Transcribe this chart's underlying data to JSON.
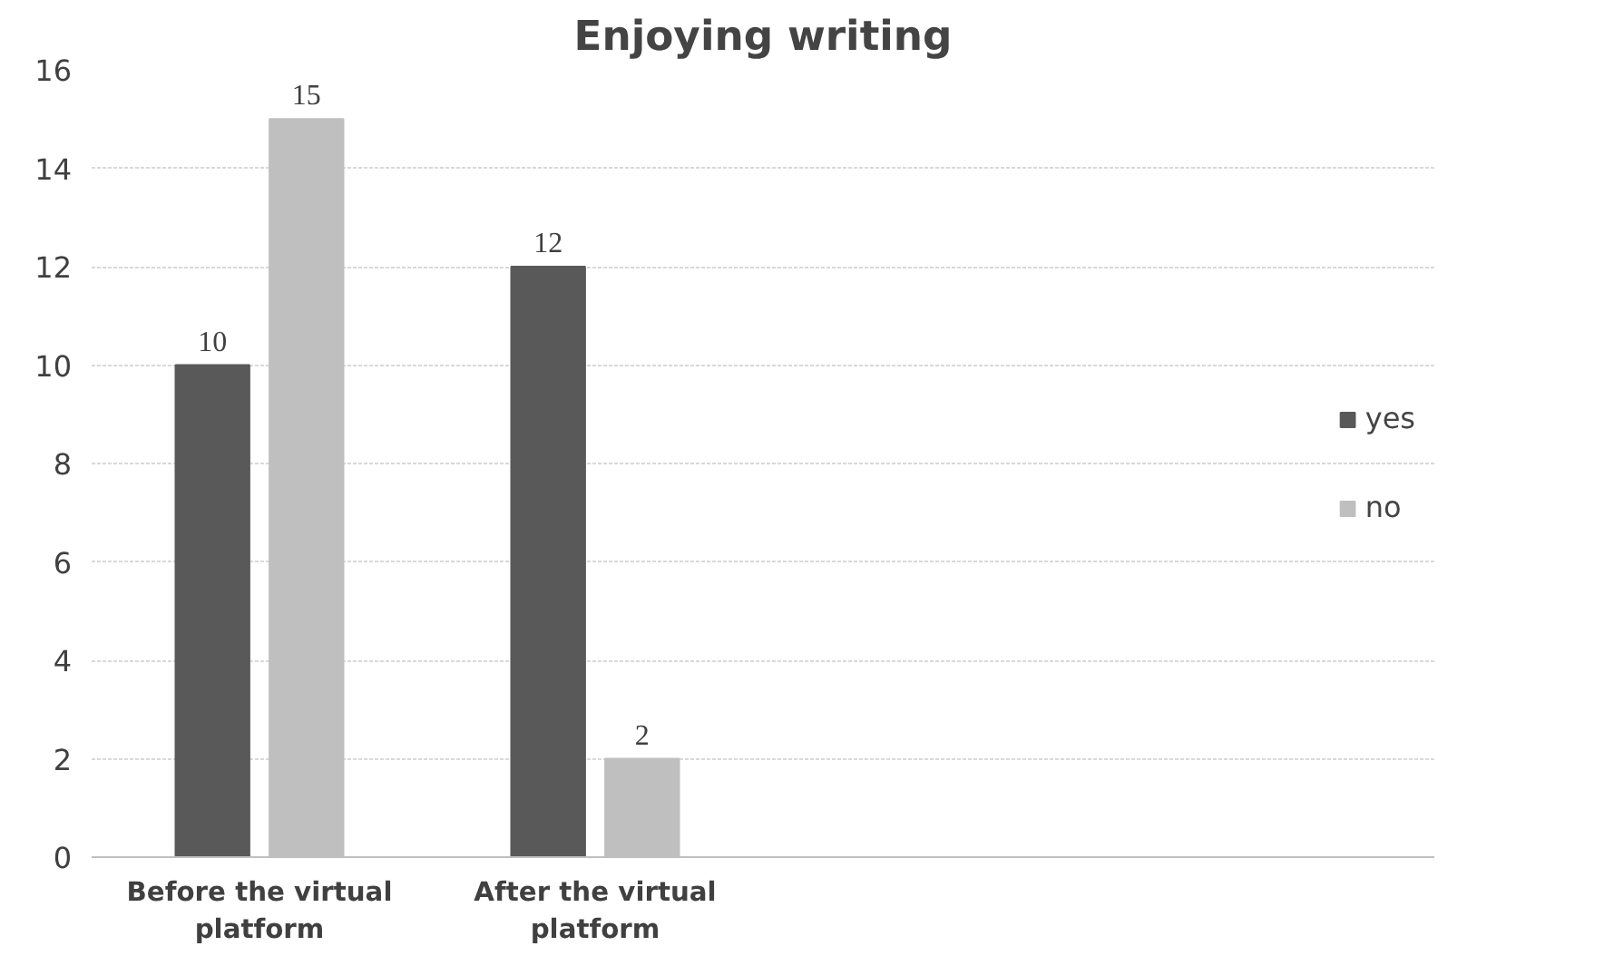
{
  "chart_data": {
    "type": "bar",
    "title": "Enjoying writing",
    "categories": [
      "Before the virtual platform",
      "After the virtual platform",
      null,
      null
    ],
    "series": [
      {
        "name": "yes",
        "color": "#595959",
        "values": [
          10,
          12,
          null,
          null
        ]
      },
      {
        "name": "no",
        "color": "#bfbfbf",
        "values": [
          15,
          2,
          null,
          null
        ]
      }
    ],
    "ylim": [
      0,
      16
    ],
    "yticks": [
      0,
      2,
      4,
      6,
      8,
      10,
      12,
      14,
      16
    ],
    "grid": "y",
    "legend": "right",
    "data_labels": true
  }
}
